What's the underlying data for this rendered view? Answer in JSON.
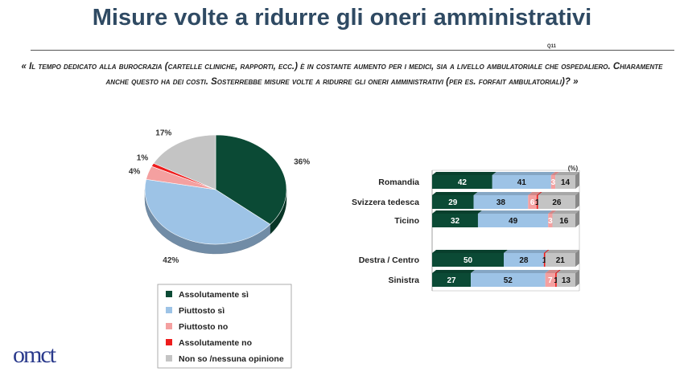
{
  "page": {
    "title": "Misure volte a ridurre gli oneri amministrativi",
    "question_code": "Q11",
    "question": "« Il tempo dedicato alla burocrazia (cartelle cliniche, rapporti, ecc.) è in costante aumento per i medici, sia a livello ambulatoriale che ospedaliero. Chiaramente anche questo ha dei costi. Sosterrebbe misure volte a ridurre gli oneri amministrativi (per es. forfait ambulatoriali)? »",
    "logo_text": "omct"
  },
  "colors": {
    "Assolutamente sì": "#0b4a35",
    "Piuttosto sì": "#9dc3e6",
    "Piuttosto no": "#f4a0a0",
    "Assolutamente no": "#ee1c1c",
    "Non so /nessuna opinione": "#c4c4c4"
  },
  "chart_data": [
    {
      "type": "pie",
      "categories": [
        "Assolutamente sì",
        "Piuttosto sì",
        "Piuttosto no",
        "Assolutamente no",
        "Non so /nessuna opinione"
      ],
      "values": [
        36,
        42,
        4,
        1,
        17
      ],
      "labels": [
        "36%",
        "42%",
        "4%",
        "1%",
        "17%"
      ],
      "legend": [
        "Assolutamente sì",
        "Piuttosto sì",
        "Piuttosto no",
        "Assolutamente no",
        "Non so /nessuna opinione"
      ]
    },
    {
      "type": "bar",
      "stacked": true,
      "orientation": "horizontal",
      "unit_label": "(%)",
      "categories": [
        "Romandia",
        "Svizzera tedesca",
        "Ticino",
        "Destra / Centro",
        "Sinistra"
      ],
      "series": [
        {
          "name": "Assolutamente sì",
          "values": [
            42,
            29,
            32,
            50,
            27
          ]
        },
        {
          "name": "Piuttosto sì",
          "values": [
            41,
            38,
            49,
            28,
            52
          ]
        },
        {
          "name": "Piuttosto no",
          "values": [
            3,
            6,
            3,
            0,
            7
          ]
        },
        {
          "name": "Assolutamente no",
          "values": [
            0,
            1,
            0,
            1,
            1
          ]
        },
        {
          "name": "Non so /nessuna opinione",
          "values": [
            14,
            26,
            16,
            21,
            13
          ]
        }
      ]
    }
  ]
}
